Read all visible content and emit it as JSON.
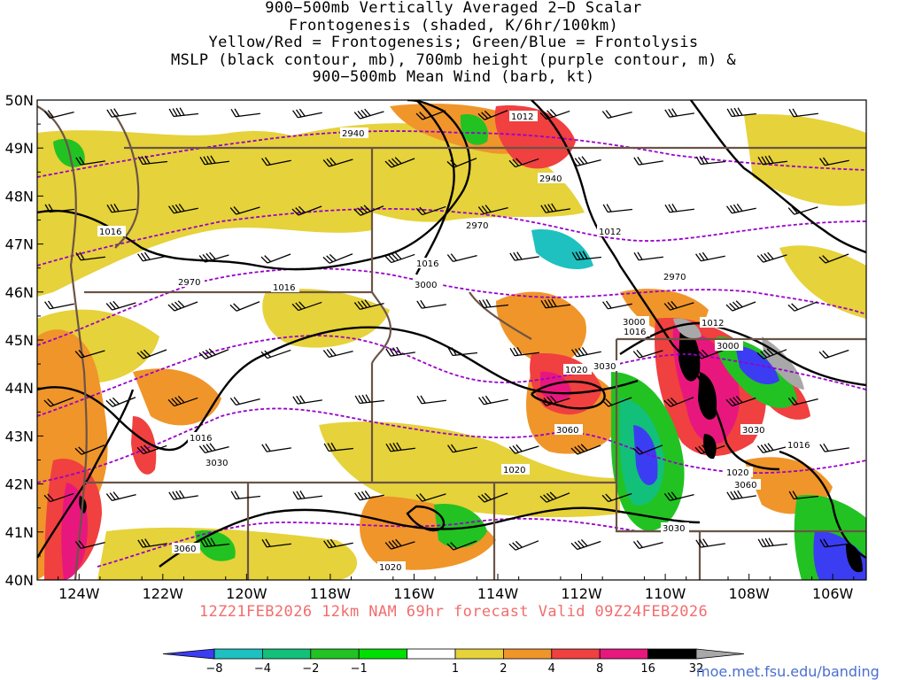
{
  "title": {
    "lines": [
      "900−500mb Vertically Averaged 2−D Scalar",
      "Frontogenesis (shaded, K/6hr/100km)",
      "Yellow/Red = Frontogenesis;  Green/Blue = Frontolysis",
      "MSLP (black contour, mb), 700mb height (purple contour, m) &",
      "900−500mb Mean Wind (barb, kt)"
    ]
  },
  "map": {
    "lat_labels": [
      "50N",
      "49N",
      "48N",
      "47N",
      "46N",
      "45N",
      "44N",
      "43N",
      "42N",
      "41N",
      "40N"
    ],
    "lon_labels": [
      "124W",
      "122W",
      "120W",
      "118W",
      "116W",
      "114W",
      "112W",
      "110W",
      "108W",
      "106W"
    ],
    "lat_values": [
      50,
      49,
      48,
      47,
      46,
      45,
      44,
      43,
      42,
      41,
      40
    ],
    "lon_values": [
      -124,
      -122,
      -120,
      -118,
      -116,
      -114,
      -112,
      -110,
      -108,
      -106
    ],
    "lon_range": [
      -125.0,
      -105.2
    ],
    "lat_range": [
      40,
      50
    ],
    "mslp_labels": [
      "1012",
      "1016",
      "1016",
      "1016",
      "1016",
      "1012",
      "1012",
      "1016",
      "1020",
      "1020",
      "1016",
      "1020",
      "1020"
    ],
    "height_labels": [
      "2940",
      "2940",
      "2970",
      "2970",
      "2970",
      "3000",
      "3000",
      "3000",
      "3030",
      "3030",
      "3060",
      "3030",
      "3060",
      "3030",
      "3060"
    ],
    "colors": {
      "mslp": "#000000",
      "height": "#9900cc",
      "borders": "#6b5447",
      "barbs": "#000000"
    }
  },
  "colorbar": {
    "labels": [
      "-8",
      "-4",
      "-2",
      "-1",
      "1",
      "2",
      "4",
      "8",
      "16",
      "32"
    ],
    "colors": [
      "#3b3df2",
      "#1fc0c0",
      "#12c07a",
      "#22c222",
      "#00e000",
      "#ffffff",
      "#e6d23a",
      "#f0952a",
      "#f04040",
      "#e8177d",
      "#000000",
      "#a8a8a8"
    ]
  },
  "run_info": "12Z21FEB2026 12km NAM 69hr forecast Valid 09Z24FEB2026",
  "source_url": "moe.met.fsu.edu/banding"
}
